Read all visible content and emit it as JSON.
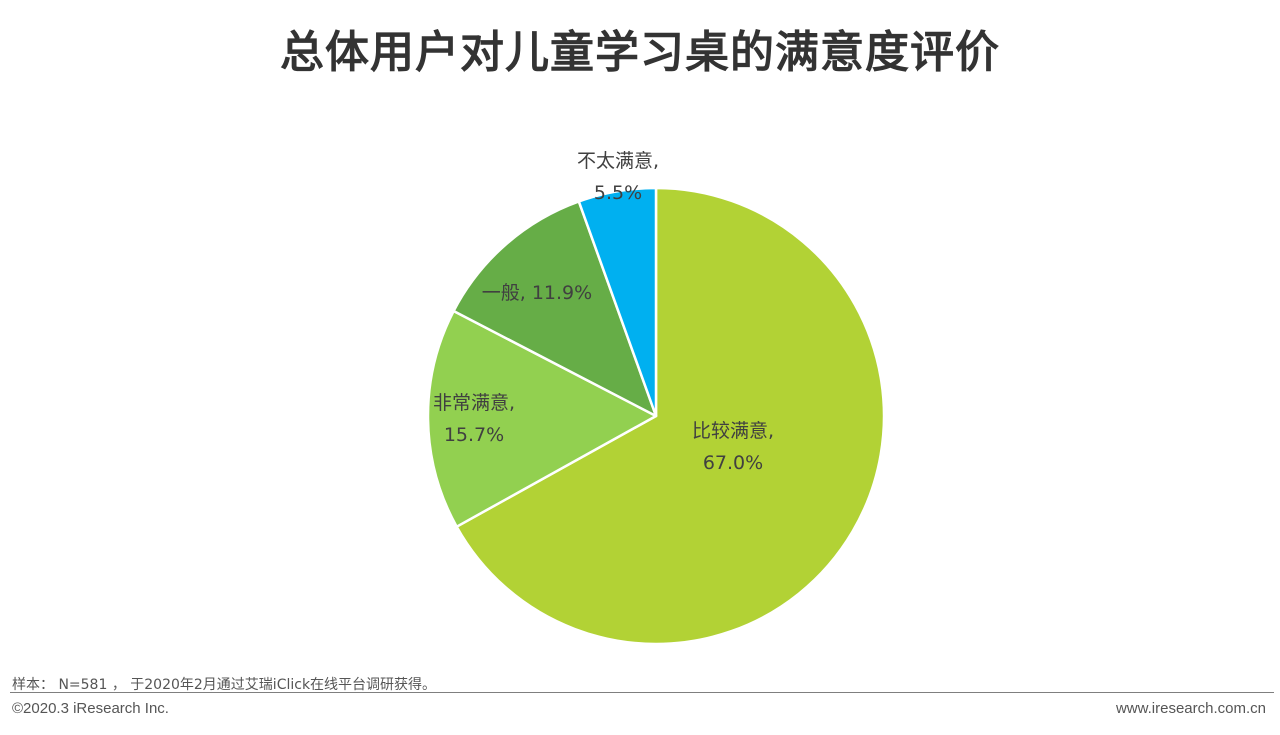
{
  "chart_data": {
    "type": "pie",
    "title": "总体用户对儿童学习桌的满意度评价",
    "slices": [
      {
        "label": "比较满意",
        "value": 67.0,
        "display": "67.0%",
        "color": "#b2d235"
      },
      {
        "label": "非常满意",
        "value": 15.7,
        "display": "15.7%",
        "color": "#92d050"
      },
      {
        "label": "一般",
        "value": 11.9,
        "display": "11.9%",
        "color": "#66ad47"
      },
      {
        "label": "不太满意",
        "value": 5.5,
        "display": "5.5%",
        "color": "#00b0f0"
      }
    ],
    "start_angle_deg": 0,
    "direction": "clockwise"
  },
  "footer": {
    "note": "样本： N=581 ， 于2020年2月通过艾瑞iClick在线平台调研获得。",
    "copyright": "©2020.3 iResearch Inc.",
    "site": "www.iresearch.com.cn"
  }
}
